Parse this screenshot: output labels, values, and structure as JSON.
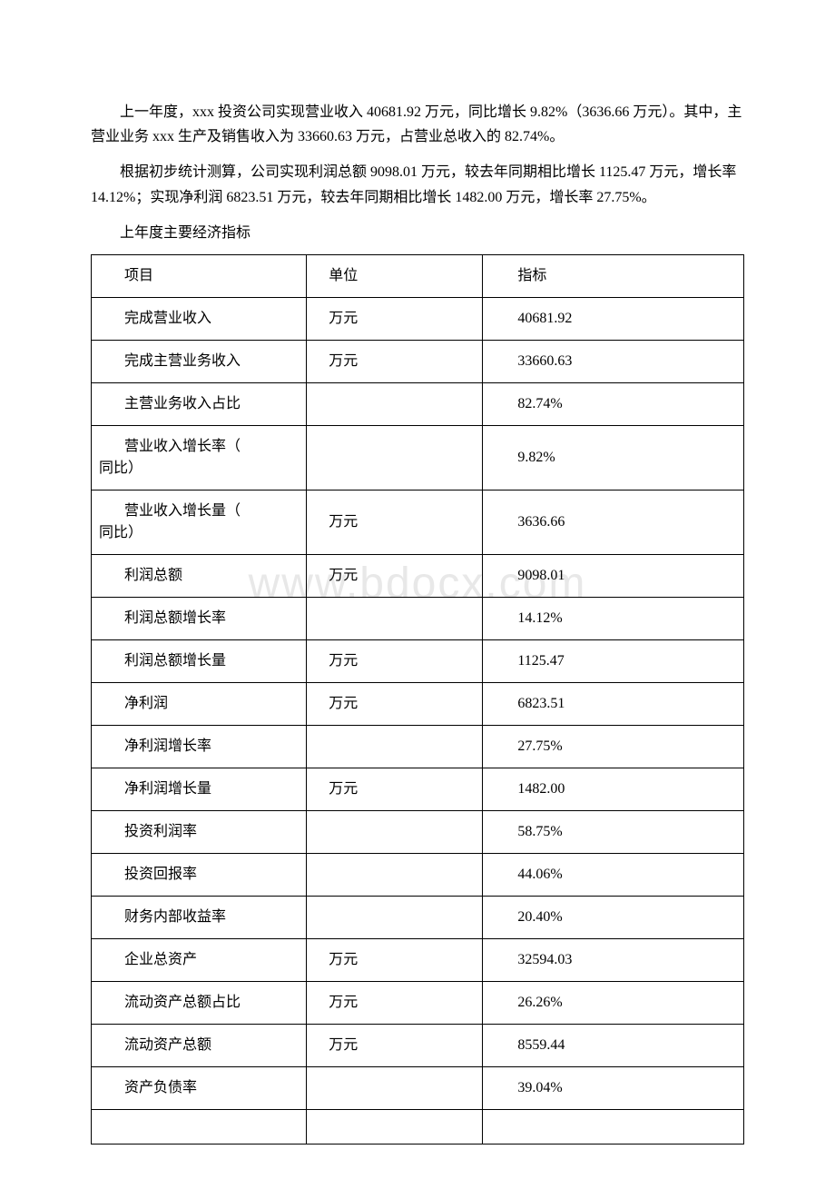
{
  "paragraphs": {
    "p1": "上一年度，xxx 投资公司实现营业收入 40681.92 万元，同比增长 9.82%（3636.66 万元）。其中，主营业业务 xxx 生产及销售收入为 33660.63 万元，占营业总收入的 82.74%。",
    "p2": "根据初步统计测算，公司实现利润总额 9098.01 万元，较去年同期相比增长 1125.47 万元，增长率 14.12%；实现净利润 6823.51 万元，较去年同期相比增长 1482.00 万元，增长率 27.75%。",
    "tableTitle": "上年度主要经济指标"
  },
  "table": {
    "headers": {
      "col1": "项目",
      "col2": "单位",
      "col3": "指标"
    },
    "rows": [
      {
        "item": "完成营业收入",
        "unit": "万元",
        "value": "40681.92"
      },
      {
        "item": "完成主营业务收入",
        "unit": "万元",
        "value": "33660.63"
      },
      {
        "item": "主营业务收入占比",
        "unit": "",
        "value": "82.74%"
      },
      {
        "item_line1": "营业收入增长率（",
        "item_line2": "同比）",
        "multiline": true,
        "unit": "",
        "value": "9.82%"
      },
      {
        "item_line1": "营业收入增长量（",
        "item_line2": "同比）",
        "multiline": true,
        "unit": "万元",
        "value": "3636.66"
      },
      {
        "item": "利润总额",
        "unit": "万元",
        "value": "9098.01"
      },
      {
        "item": "利润总额增长率",
        "unit": "",
        "value": "14.12%"
      },
      {
        "item": "利润总额增长量",
        "unit": "万元",
        "value": "1125.47"
      },
      {
        "item": "净利润",
        "unit": "万元",
        "value": "6823.51"
      },
      {
        "item": "净利润增长率",
        "unit": "",
        "value": "27.75%"
      },
      {
        "item": "净利润增长量",
        "unit": "万元",
        "value": "1482.00"
      },
      {
        "item": "投资利润率",
        "unit": "",
        "value": "58.75%"
      },
      {
        "item": "投资回报率",
        "unit": "",
        "value": "44.06%"
      },
      {
        "item": "财务内部收益率",
        "unit": "",
        "value": "20.40%"
      },
      {
        "item": "企业总资产",
        "unit": "万元",
        "value": "32594.03"
      },
      {
        "item": "流动资产总额占比",
        "unit": "万元",
        "value": "26.26%"
      },
      {
        "item": "流动资产总额",
        "unit": "万元",
        "value": "8559.44"
      },
      {
        "item": "资产负债率",
        "unit": "",
        "value": "39.04%"
      }
    ]
  },
  "watermark": "www.bdocx.com",
  "styling": {
    "page_background": "#ffffff",
    "text_color": "#000000",
    "border_color": "#000000",
    "watermark_color": "#e8e8e8",
    "font_family": "SimSun",
    "body_font_size": 16,
    "watermark_font_size": 48
  }
}
